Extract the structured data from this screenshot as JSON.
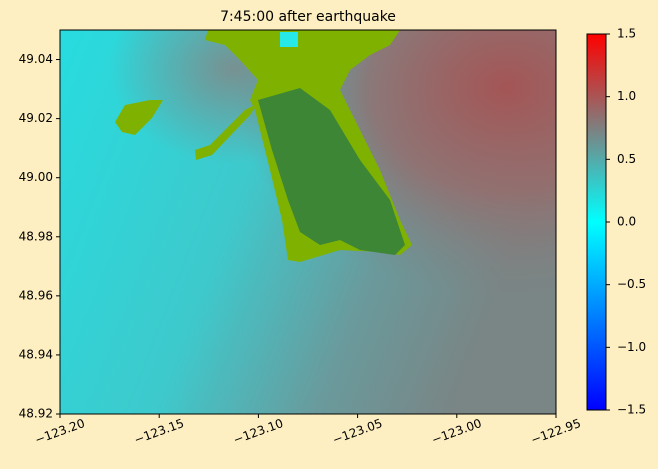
{
  "chart_data": {
    "type": "heatmap",
    "title": "7:45:00 after earthquake",
    "xlim": [
      -123.2,
      -122.95
    ],
    "xticks": [
      {
        "value": -123.2,
        "label": "−123.20"
      },
      {
        "value": -123.15,
        "label": "−123.15"
      },
      {
        "value": -123.1,
        "label": "−123.10"
      },
      {
        "value": -123.05,
        "label": "−123.05"
      },
      {
        "value": -123.0,
        "label": "−123.00"
      },
      {
        "value": -122.95,
        "label": "−122.95"
      }
    ],
    "ylim": [
      48.92,
      49.05
    ],
    "yticks": [
      {
        "value": 48.92,
        "label": "48.92"
      },
      48.94,
      48.96,
      48.98,
      {
        "value": 49.0,
        "label": "49.00"
      },
      49.02,
      49.04
    ],
    "colorbar_lim": [
      -1.5,
      1.5
    ],
    "colorbar_ticks": [
      1.5,
      {
        "value": 1.0,
        "label": "1.0"
      },
      0.5,
      {
        "value": 0.0,
        "label": "0.0"
      },
      {
        "value": -0.5,
        "label": "−0.5"
      },
      {
        "value": -1.0,
        "label": "−1.0"
      },
      {
        "value": -1.5,
        "label": "−1.5"
      }
    ]
  }
}
